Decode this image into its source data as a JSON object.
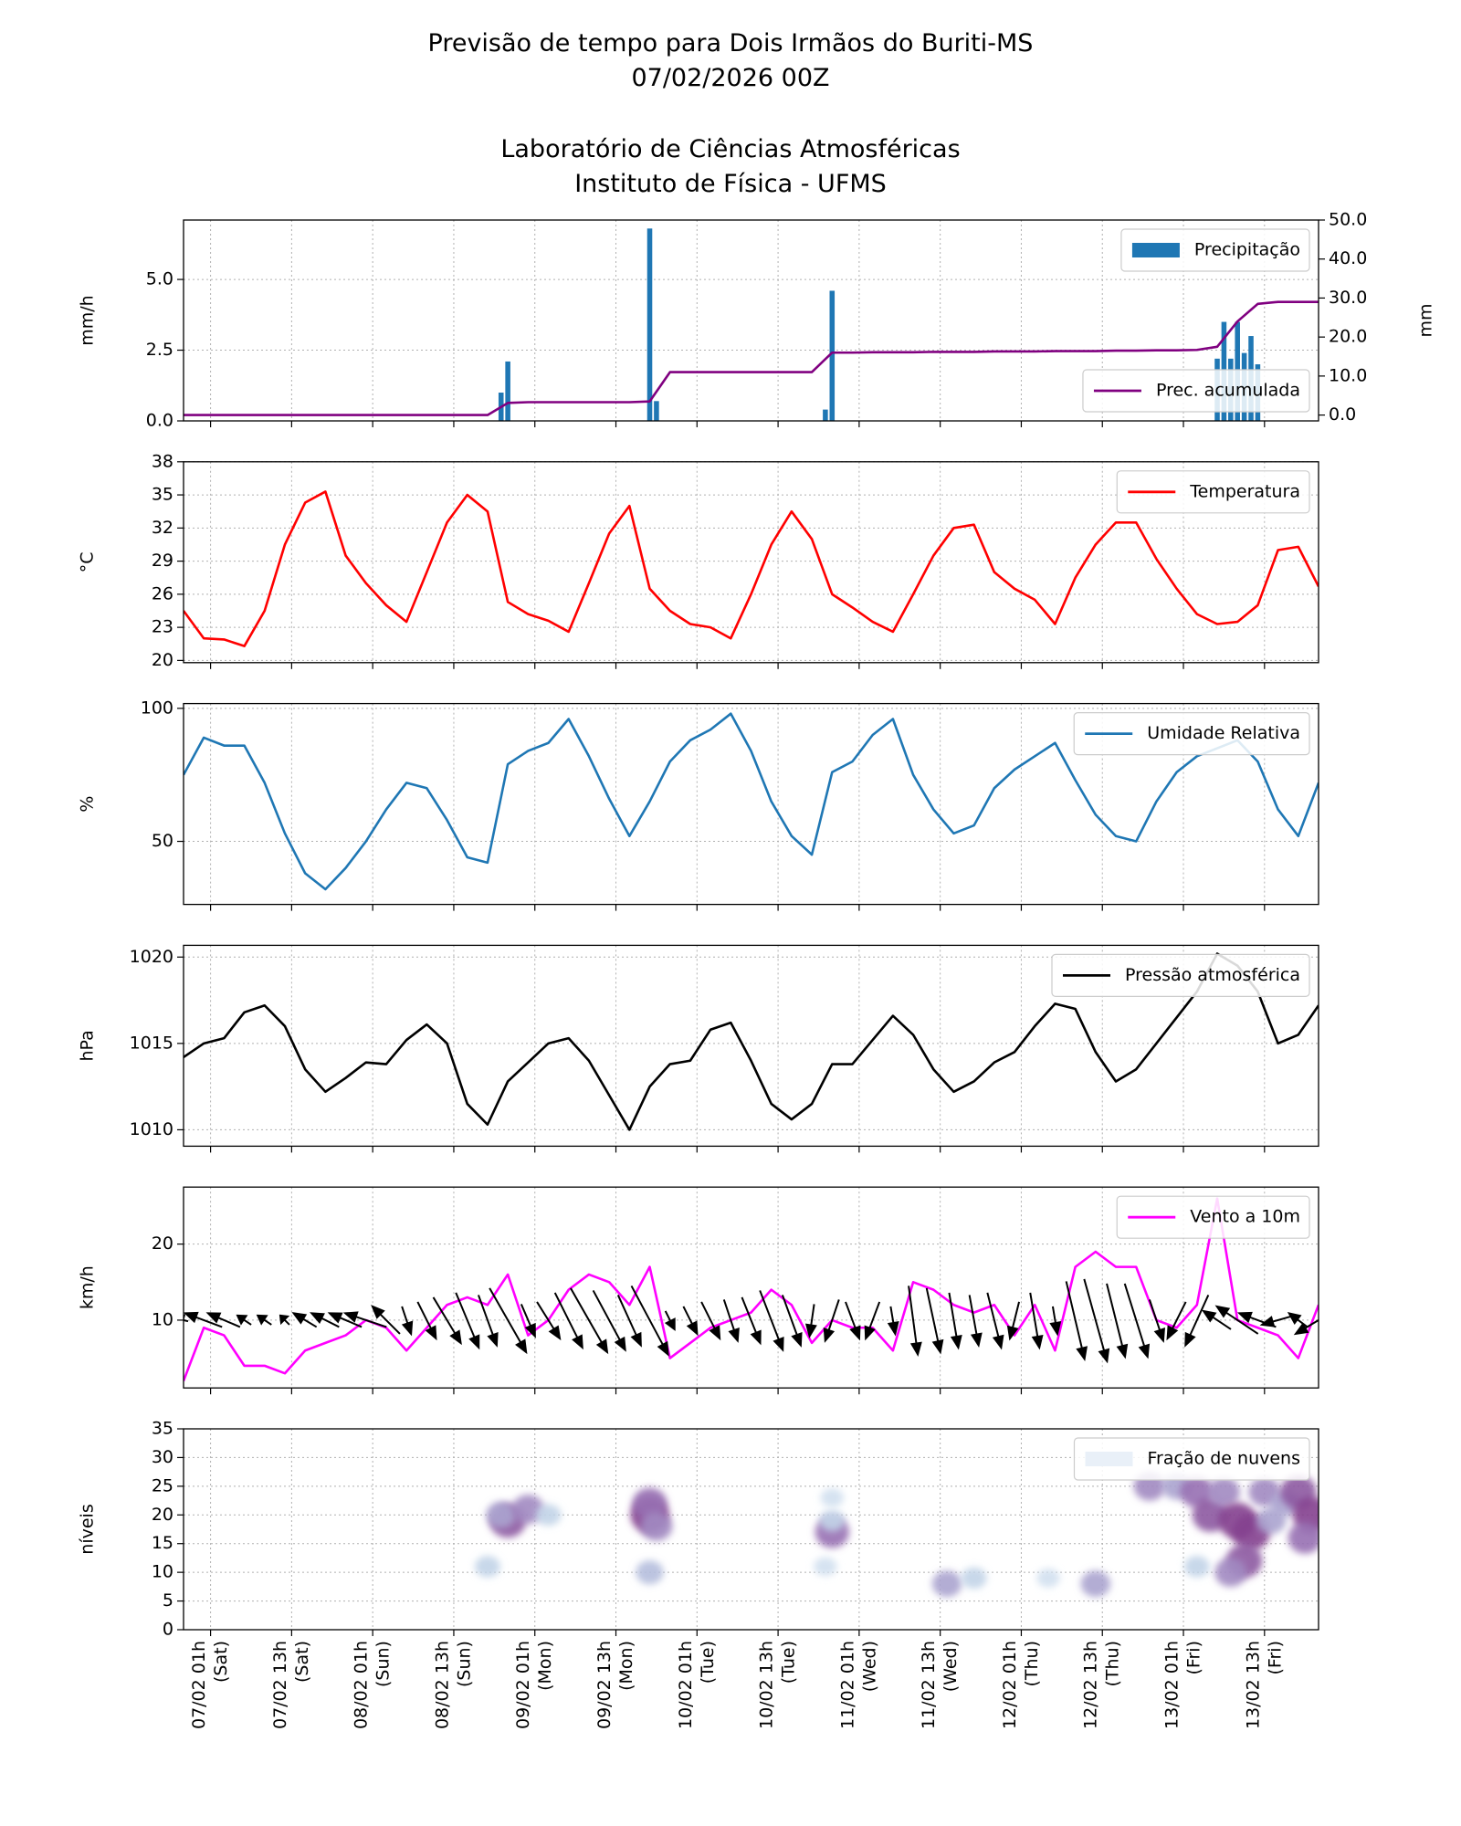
{
  "chart_data": [
    {
      "type": "bar",
      "title": [
        "Previsão de tempo para Dois Irmãos do Buriti-MS",
        "07/02/2026 00Z",
        "Laboratório de Ciências Atmosféricas",
        "Instituto de Física - UFMS"
      ],
      "ylabel": "mm/h",
      "y2label": "mm",
      "grid": true,
      "xlim": [
        0,
        168
      ],
      "xticks": [
        4,
        16,
        28,
        40,
        52,
        64,
        76,
        88,
        100,
        112,
        124,
        136,
        148,
        160
      ],
      "ylim": [
        0,
        7.1
      ],
      "yticks": [
        {
          "value": 0,
          "label": "0.0"
        },
        {
          "value": 2.5,
          "label": "2.5"
        },
        {
          "value": 5,
          "label": "5.0"
        }
      ],
      "y2lim": [
        -1.5,
        50
      ],
      "y2ticks": [
        {
          "value": 0,
          "label": "0.0"
        },
        {
          "value": 10,
          "label": "10.0"
        },
        {
          "value": 20,
          "label": "20.0"
        },
        {
          "value": 30,
          "label": "30.0"
        },
        {
          "value": 40,
          "label": "40.0"
        },
        {
          "value": 50,
          "label": "50.0"
        }
      ],
      "series": [
        {
          "name": "Precipitação",
          "type": "bar",
          "color": "#1f77b4",
          "legend": "upper right",
          "x": [
            47,
            48,
            69,
            70,
            95,
            96,
            153,
            154,
            155,
            156,
            157,
            158,
            159
          ],
          "values": [
            1.0,
            2.1,
            6.8,
            0.7,
            0.4,
            4.6,
            2.2,
            3.5,
            2.2,
            3.5,
            2.4,
            3.0,
            2.0
          ]
        },
        {
          "name": "Prec. acumulada",
          "type": "line",
          "axis": "y2",
          "color": "#800080",
          "legend": "lower right",
          "x": [
            0,
            3,
            6,
            9,
            12,
            15,
            18,
            21,
            24,
            27,
            30,
            33,
            36,
            39,
            42,
            45,
            48,
            51,
            54,
            57,
            60,
            63,
            66,
            69,
            72,
            75,
            78,
            81,
            84,
            87,
            90,
            93,
            96,
            99,
            102,
            105,
            108,
            111,
            114,
            117,
            120,
            123,
            126,
            129,
            132,
            135,
            138,
            141,
            144,
            147,
            150,
            153,
            156,
            159,
            162,
            165,
            168
          ],
          "values": [
            0,
            0,
            0,
            0,
            0,
            0,
            0,
            0,
            0,
            0,
            0,
            0,
            0,
            0,
            0,
            0,
            3.1,
            3.3,
            3.3,
            3.3,
            3.3,
            3.3,
            3.3,
            3.5,
            11.0,
            11.0,
            11.0,
            11.0,
            11.0,
            11.0,
            11.0,
            11.0,
            16.0,
            16.0,
            16.1,
            16.1,
            16.1,
            16.2,
            16.2,
            16.2,
            16.3,
            16.3,
            16.3,
            16.4,
            16.4,
            16.4,
            16.5,
            16.5,
            16.6,
            16.6,
            16.7,
            17.5,
            24.0,
            28.5,
            29.0,
            29.0,
            29.0
          ]
        }
      ]
    },
    {
      "type": "line",
      "ylabel": "°C",
      "grid": true,
      "legend": "upper right",
      "xlim": [
        0,
        168
      ],
      "xticks": [
        4,
        16,
        28,
        40,
        52,
        64,
        76,
        88,
        100,
        112,
        124,
        136,
        148,
        160
      ],
      "ylim": [
        19.8,
        38
      ],
      "yticks": [
        20,
        23,
        26,
        29,
        32,
        35,
        38
      ],
      "series": [
        {
          "name": "Temperatura",
          "color": "#ff0000",
          "x": [
            0,
            3,
            6,
            9,
            12,
            15,
            18,
            21,
            24,
            27,
            30,
            33,
            36,
            39,
            42,
            45,
            48,
            51,
            54,
            57,
            60,
            63,
            66,
            69,
            72,
            75,
            78,
            81,
            84,
            87,
            90,
            93,
            96,
            99,
            102,
            105,
            108,
            111,
            114,
            117,
            120,
            123,
            126,
            129,
            132,
            135,
            138,
            141,
            144,
            147,
            150,
            153,
            156,
            159,
            162,
            165,
            168
          ],
          "values": [
            24.5,
            22.0,
            21.9,
            21.3,
            24.5,
            30.5,
            34.3,
            35.3,
            29.5,
            27.0,
            25.0,
            23.5,
            28.0,
            32.5,
            35.0,
            33.5,
            25.3,
            24.2,
            23.6,
            22.6,
            27.0,
            31.5,
            34.0,
            26.5,
            24.5,
            23.3,
            23.0,
            22.0,
            26.0,
            30.5,
            33.5,
            31.0,
            26.0,
            24.8,
            23.5,
            22.6,
            26.0,
            29.5,
            32.0,
            32.3,
            28.0,
            26.5,
            25.5,
            23.3,
            27.5,
            30.5,
            32.5,
            32.5,
            29.2,
            26.5,
            24.2,
            23.3,
            23.5,
            25.0,
            30.0,
            30.3,
            26.7
          ]
        }
      ]
    },
    {
      "type": "line",
      "ylabel": "%",
      "grid": true,
      "legend": "upper right",
      "xlim": [
        0,
        168
      ],
      "xticks": [
        4,
        16,
        28,
        40,
        52,
        64,
        76,
        88,
        100,
        112,
        124,
        136,
        148,
        160
      ],
      "ylim": [
        26.3,
        101.8
      ],
      "yticks": [
        50,
        100
      ],
      "series": [
        {
          "name": "Umidade Relativa",
          "color": "#1f77b4",
          "x": [
            0,
            3,
            6,
            9,
            12,
            15,
            18,
            21,
            24,
            27,
            30,
            33,
            36,
            39,
            42,
            45,
            48,
            51,
            54,
            57,
            60,
            63,
            66,
            69,
            72,
            75,
            78,
            81,
            84,
            87,
            90,
            93,
            96,
            99,
            102,
            105,
            108,
            111,
            114,
            117,
            120,
            123,
            126,
            129,
            132,
            135,
            138,
            141,
            144,
            147,
            150,
            153,
            156,
            159,
            162,
            165,
            168
          ],
          "values": [
            75,
            89,
            86,
            86,
            72,
            53,
            38,
            32,
            40,
            50,
            62,
            72,
            70,
            58,
            44,
            42,
            79,
            84,
            87,
            96,
            82,
            66,
            52,
            65,
            80,
            88,
            92,
            98,
            84,
            65,
            52,
            45,
            76,
            80,
            90,
            96,
            75,
            62,
            53,
            56,
            70,
            77,
            82,
            87,
            73,
            60,
            52,
            50,
            65,
            76,
            82,
            85,
            88,
            80,
            62,
            52,
            72
          ]
        }
      ]
    },
    {
      "type": "line",
      "ylabel": "hPa",
      "grid": true,
      "legend": "upper right",
      "xlim": [
        0,
        168
      ],
      "xticks": [
        4,
        16,
        28,
        40,
        52,
        64,
        76,
        88,
        100,
        112,
        124,
        136,
        148,
        160
      ],
      "ylim": [
        1009.05,
        1020.68
      ],
      "yticks": [
        1010,
        1015,
        1020
      ],
      "series": [
        {
          "name": "Pressão atmosférica",
          "color": "#000000",
          "x": [
            0,
            3,
            6,
            9,
            12,
            15,
            18,
            21,
            24,
            27,
            30,
            33,
            36,
            39,
            42,
            45,
            48,
            51,
            54,
            57,
            60,
            63,
            66,
            69,
            72,
            75,
            78,
            81,
            84,
            87,
            90,
            93,
            96,
            99,
            102,
            105,
            108,
            111,
            114,
            117,
            120,
            123,
            126,
            129,
            132,
            135,
            138,
            141,
            144,
            147,
            150,
            153,
            156,
            159,
            162,
            165,
            168
          ],
          "values": [
            1014.2,
            1015.0,
            1015.3,
            1016.8,
            1017.2,
            1016.0,
            1013.5,
            1012.2,
            1013.0,
            1013.9,
            1013.8,
            1015.2,
            1016.1,
            1015.0,
            1011.5,
            1010.3,
            1012.8,
            1013.9,
            1015.0,
            1015.3,
            1014.0,
            1012.0,
            1010.0,
            1012.5,
            1013.8,
            1014.0,
            1015.8,
            1016.2,
            1014.0,
            1011.5,
            1010.6,
            1011.5,
            1013.8,
            1013.8,
            1015.2,
            1016.6,
            1015.5,
            1013.5,
            1012.2,
            1012.8,
            1013.9,
            1014.5,
            1016.0,
            1017.3,
            1017.0,
            1014.5,
            1012.8,
            1013.5,
            1015.0,
            1016.5,
            1018.0,
            1020.2,
            1019.5,
            1018.0,
            1015.0,
            1015.5,
            1017.2
          ]
        }
      ]
    },
    {
      "type": "quiver",
      "ylabel": "km/h",
      "grid": true,
      "legend": "upper right",
      "xlim": [
        0,
        168
      ],
      "xticks": [
        4,
        16,
        28,
        40,
        52,
        64,
        76,
        88,
        100,
        112,
        124,
        136,
        148,
        160
      ],
      "ylim": [
        1.08,
        27.5
      ],
      "yticks": [
        10,
        20
      ],
      "arrow_level": 10,
      "series": [
        {
          "name": "Vento a 10m",
          "color": "#ff00ff",
          "x": [
            0,
            3,
            6,
            9,
            12,
            15,
            18,
            21,
            24,
            27,
            30,
            33,
            36,
            39,
            42,
            45,
            48,
            51,
            54,
            57,
            60,
            63,
            66,
            69,
            72,
            75,
            78,
            81,
            84,
            87,
            90,
            93,
            96,
            99,
            102,
            105,
            108,
            111,
            114,
            117,
            120,
            123,
            126,
            129,
            132,
            135,
            138,
            141,
            144,
            147,
            150,
            153,
            156,
            159,
            162,
            165,
            168
          ],
          "values": [
            2,
            9,
            8,
            4,
            4,
            3,
            6,
            7,
            8,
            10,
            9,
            6,
            9,
            12,
            13,
            12,
            16,
            8,
            10,
            14,
            16,
            15,
            12,
            17,
            5,
            7,
            9,
            10,
            11,
            14,
            12,
            7,
            10,
            9,
            9,
            6,
            15,
            14,
            12,
            11,
            12,
            8,
            12,
            6,
            17,
            19,
            17,
            17,
            10,
            9,
            12,
            26,
            10,
            9,
            8,
            5,
            12
          ]
        }
      ],
      "arrows": {
        "color": "#000000",
        "u": [
          -2,
          -8,
          -7,
          -3,
          -3,
          -2,
          -5,
          -6,
          -7,
          -9,
          -6,
          2,
          4,
          6,
          5,
          4,
          8,
          3,
          5,
          6,
          8,
          7,
          5,
          8,
          2,
          3,
          4,
          3,
          4,
          5,
          4,
          -1,
          -3,
          3,
          -3,
          1,
          2,
          3,
          2,
          2,
          3,
          -2,
          2,
          1,
          4,
          5,
          4,
          5,
          3,
          -4,
          -5,
          -6,
          -9,
          -8,
          -7,
          -4,
          -10
        ],
        "v": [
          0.5,
          3,
          3,
          2,
          2,
          2,
          3,
          3,
          3,
          3,
          6,
          -6,
          -8,
          -10,
          -12,
          -11,
          -14,
          -7,
          -8,
          -12,
          -14,
          -13,
          -11,
          -15,
          -4,
          -6,
          -8,
          -9,
          -10,
          -13,
          -11,
          -7,
          -9,
          -8,
          -8,
          -6,
          -15,
          -14,
          -12,
          -11,
          -12,
          -8,
          -12,
          -6,
          -17,
          -18,
          -16,
          -16,
          -9,
          -8,
          -11,
          4,
          6,
          3,
          -2,
          3,
          -6
        ]
      }
    },
    {
      "type": "heatmap",
      "ylabel": "níveis",
      "grid": true,
      "legend": "upper right",
      "xlim": [
        0,
        168
      ],
      "xticks": [
        {
          "value": 4,
          "label": [
            "07/02 01h",
            "(Sat)"
          ]
        },
        {
          "value": 16,
          "label": [
            "07/02 13h",
            "(Sat)"
          ]
        },
        {
          "value": 28,
          "label": [
            "08/02 01h",
            "(Sun)"
          ]
        },
        {
          "value": 40,
          "label": [
            "08/02 13h",
            "(Sun)"
          ]
        },
        {
          "value": 52,
          "label": [
            "09/02 01h",
            "(Mon)"
          ]
        },
        {
          "value": 64,
          "label": [
            "09/02 13h",
            "(Mon)"
          ]
        },
        {
          "value": 76,
          "label": [
            "10/02 01h",
            "(Tue)"
          ]
        },
        {
          "value": 88,
          "label": [
            "10/02 13h",
            "(Tue)"
          ]
        },
        {
          "value": 100,
          "label": [
            "11/02 01h",
            "(Wed)"
          ]
        },
        {
          "value": 112,
          "label": [
            "11/02 13h",
            "(Wed)"
          ]
        },
        {
          "value": 124,
          "label": [
            "12/02 01h",
            "(Thu)"
          ]
        },
        {
          "value": 136,
          "label": [
            "12/02 13h",
            "(Thu)"
          ]
        },
        {
          "value": 148,
          "label": [
            "13/02 01h",
            "(Fri)"
          ]
        },
        {
          "value": 160,
          "label": [
            "13/02 13h",
            "(Fri)"
          ]
        }
      ],
      "ylim": [
        0,
        35
      ],
      "yticks": [
        0,
        5,
        10,
        15,
        20,
        25,
        30,
        35
      ],
      "colormap": [
        "#f4f8fc",
        "#bcd0e6",
        "#9a78b8",
        "#7a2a7e"
      ],
      "cells": {
        "name": "Fração de nuvens",
        "color": "#e9f0f8",
        "x": [
          48,
          47,
          51,
          54,
          45,
          69,
          69,
          70,
          69,
          96,
          96,
          96,
          95,
          113,
          117,
          128,
          135,
          143,
          147,
          150,
          152,
          154,
          156,
          158,
          157,
          155,
          160,
          163,
          165,
          167,
          166,
          161,
          150
        ],
        "levels": [
          19,
          20,
          21,
          20,
          11,
          20,
          22,
          18,
          10,
          17,
          19,
          23,
          11,
          8,
          9,
          9,
          8,
          25,
          25,
          24,
          20,
          24,
          19,
          17,
          12,
          10,
          24,
          22,
          24,
          20,
          16,
          19,
          11
        ],
        "values": [
          0.8,
          0.5,
          0.6,
          0.3,
          0.3,
          0.9,
          0.7,
          0.6,
          0.4,
          0.7,
          0.3,
          0.2,
          0.2,
          0.5,
          0.3,
          0.2,
          0.5,
          0.6,
          0.5,
          0.7,
          0.8,
          0.6,
          0.9,
          0.9,
          0.8,
          0.6,
          0.6,
          0.5,
          0.8,
          0.9,
          0.7,
          0.5,
          0.3
        ]
      }
    }
  ]
}
